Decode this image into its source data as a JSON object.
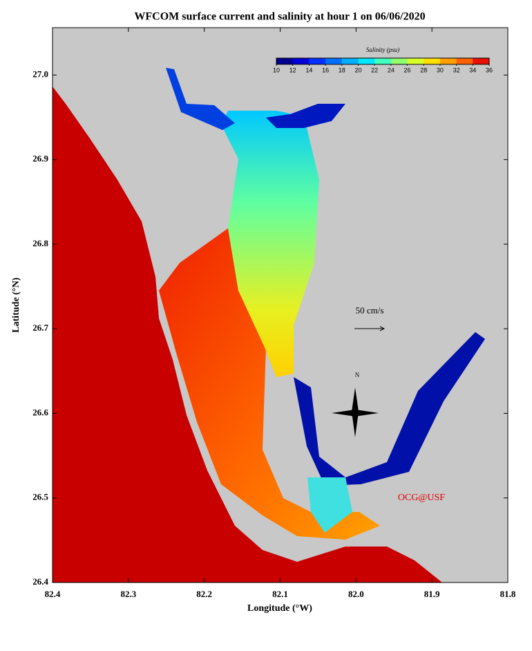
{
  "title": "WFCOM surface current and salinity at hour 1 on 06/06/2020",
  "map": {
    "xlabel": "Longitude (°W)",
    "ylabel": "Latitude (°N)",
    "xlim": [
      82.4,
      81.8
    ],
    "xticks": [
      82.4,
      82.3,
      82.2,
      82.1,
      {
        "value": 82.0,
        "label": "82.0"
      },
      81.9,
      81.8
    ],
    "ylim": [
      26.4,
      27.056
    ],
    "yticks": [
      26.4,
      26.5,
      26.6,
      26.7,
      26.8,
      26.9,
      {
        "value": 27.0,
        "label": "27.0"
      }
    ],
    "colorbar": {
      "label": "Salinity (psu)",
      "lim": [
        10,
        36
      ],
      "ticks": [
        10,
        12,
        14,
        16,
        18,
        20,
        22,
        24,
        26,
        28,
        30,
        32,
        34,
        36
      ],
      "colors": [
        "#00008f",
        "#0000d8",
        "#0030ff",
        "#0070ff",
        "#00b0ff",
        "#00e8ff",
        "#40ffbf",
        "#90ff70",
        "#d8ff28",
        "#ffe000",
        "#ffa000",
        "#ff6000",
        "#e81000"
      ]
    },
    "scale_label": "50 cm/s",
    "north_label": "N",
    "credit": "OCG@USF"
  }
}
